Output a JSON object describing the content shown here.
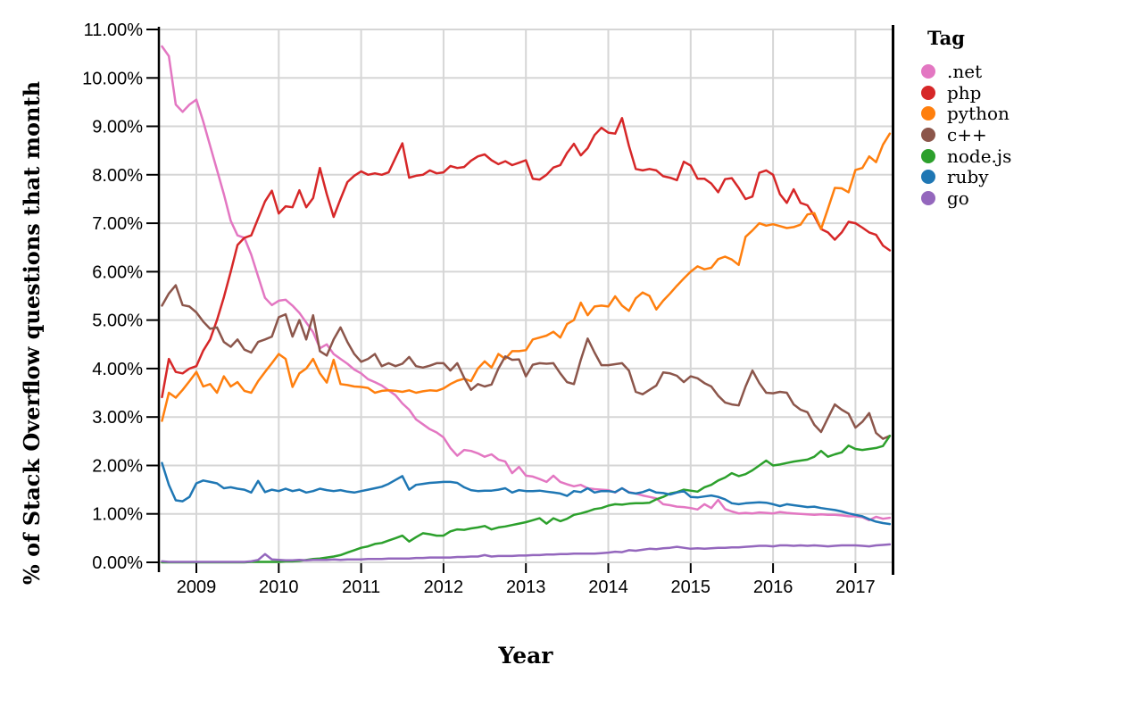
{
  "chart_data": {
    "type": "line",
    "title": "",
    "xlabel": "Year",
    "ylabel": "% of Stack Overflow questions that month",
    "legend_title": "Tag",
    "legend_position": "right",
    "grid": true,
    "x_unit": "month",
    "x_start": "2008-08",
    "x_end": "2017-06",
    "x_ticks": [
      2009,
      2010,
      2011,
      2012,
      2013,
      2014,
      2015,
      2016,
      2017
    ],
    "x_tick_labels": [
      "2009",
      "2010",
      "2011",
      "2012",
      "2013",
      "2014",
      "2015",
      "2016",
      "2017"
    ],
    "y_tick_values": [
      0,
      1,
      2,
      3,
      4,
      5,
      6,
      7,
      8,
      9,
      10,
      11
    ],
    "y_tick_labels": [
      "0.00%",
      "1.00%",
      "2.00%",
      "3.00%",
      "4.00%",
      "5.00%",
      "6.00%",
      "7.00%",
      "8.00%",
      "9.00%",
      "10.00%",
      "11.00%"
    ],
    "ylim": [
      0,
      11
    ],
    "xlim_years": [
      2008.545,
      2017.45
    ],
    "axis_color": "#000000",
    "grid_color": "#d6d6d6",
    "series": [
      {
        "name": ".net",
        "color": "#e377c2",
        "values": [
          10.65,
          10.45,
          9.45,
          9.3,
          9.45,
          9.55,
          9.1,
          8.6,
          8.1,
          7.6,
          7.05,
          6.75,
          6.7,
          6.35,
          5.9,
          5.46,
          5.31,
          5.4,
          5.42,
          5.3,
          5.15,
          4.95,
          4.75,
          4.42,
          4.5,
          4.3,
          4.2,
          4.1,
          3.98,
          3.9,
          3.78,
          3.72,
          3.65,
          3.55,
          3.45,
          3.28,
          3.15,
          2.95,
          2.85,
          2.75,
          2.68,
          2.58,
          2.36,
          2.2,
          2.32,
          2.3,
          2.25,
          2.18,
          2.23,
          2.12,
          2.08,
          1.84,
          1.97,
          1.79,
          1.77,
          1.72,
          1.66,
          1.79,
          1.66,
          1.61,
          1.57,
          1.6,
          1.53,
          1.51,
          1.5,
          1.49,
          1.44,
          1.53,
          1.45,
          1.42,
          1.38,
          1.35,
          1.32,
          1.2,
          1.18,
          1.15,
          1.14,
          1.12,
          1.09,
          1.2,
          1.12,
          1.29,
          1.1,
          1.05,
          1.01,
          1.02,
          1.01,
          1.03,
          1.02,
          1.01,
          1.04,
          1.02,
          1.01,
          1.0,
          0.99,
          0.98,
          0.99,
          0.98,
          0.98,
          0.97,
          0.95,
          0.95,
          0.93,
          0.87,
          0.94,
          0.9,
          0.92
        ]
      },
      {
        "name": "php",
        "color": "#d62728",
        "values": [
          3.41,
          4.2,
          3.93,
          3.9,
          4.0,
          4.05,
          4.37,
          4.6,
          5.0,
          5.47,
          6.0,
          6.55,
          6.7,
          6.75,
          7.1,
          7.45,
          7.67,
          7.2,
          7.35,
          7.33,
          7.68,
          7.33,
          7.52,
          8.14,
          7.6,
          7.13,
          7.5,
          7.85,
          7.98,
          8.07,
          8.0,
          8.03,
          8.0,
          8.05,
          8.35,
          8.65,
          7.94,
          7.98,
          8.0,
          8.09,
          8.03,
          8.05,
          8.18,
          8.14,
          8.16,
          8.29,
          8.38,
          8.42,
          8.3,
          8.22,
          8.28,
          8.2,
          8.25,
          8.3,
          7.92,
          7.9,
          8.0,
          8.15,
          8.2,
          8.45,
          8.64,
          8.4,
          8.55,
          8.82,
          8.97,
          8.87,
          8.85,
          9.17,
          8.6,
          8.12,
          8.09,
          8.12,
          8.09,
          7.97,
          7.94,
          7.89,
          8.27,
          8.19,
          7.92,
          7.92,
          7.82,
          7.64,
          7.91,
          7.93,
          7.73,
          7.5,
          7.55,
          8.04,
          8.09,
          8.0,
          7.6,
          7.42,
          7.7,
          7.42,
          7.37,
          7.15,
          6.88,
          6.81,
          6.66,
          6.81,
          7.03,
          7.0,
          6.91,
          6.81,
          6.76,
          6.54,
          6.44
        ]
      },
      {
        "name": "python",
        "color": "#ff7f0e",
        "values": [
          2.92,
          3.5,
          3.4,
          3.56,
          3.74,
          3.93,
          3.63,
          3.68,
          3.5,
          3.84,
          3.63,
          3.72,
          3.54,
          3.5,
          3.74,
          3.93,
          4.11,
          4.3,
          4.2,
          3.62,
          3.9,
          4.0,
          4.2,
          3.9,
          3.71,
          4.18,
          3.68,
          3.66,
          3.63,
          3.62,
          3.6,
          3.5,
          3.54,
          3.55,
          3.54,
          3.52,
          3.55,
          3.5,
          3.53,
          3.55,
          3.54,
          3.59,
          3.68,
          3.75,
          3.79,
          3.74,
          4.0,
          4.15,
          4.02,
          4.3,
          4.2,
          4.36,
          4.36,
          4.38,
          4.6,
          4.64,
          4.68,
          4.76,
          4.64,
          4.92,
          5.0,
          5.36,
          5.1,
          5.28,
          5.3,
          5.28,
          5.49,
          5.3,
          5.19,
          5.45,
          5.57,
          5.5,
          5.22,
          5.4,
          5.55,
          5.71,
          5.86,
          6.0,
          6.11,
          6.05,
          6.08,
          6.26,
          6.31,
          6.25,
          6.14,
          6.72,
          6.85,
          7.0,
          6.95,
          6.98,
          6.94,
          6.9,
          6.92,
          6.97,
          7.18,
          7.21,
          6.88,
          7.3,
          7.73,
          7.72,
          7.64,
          8.1,
          8.14,
          8.38,
          8.26,
          8.62,
          8.85
        ]
      },
      {
        "name": "c++",
        "color": "#8c564b",
        "values": [
          5.3,
          5.55,
          5.72,
          5.31,
          5.28,
          5.16,
          4.97,
          4.82,
          4.85,
          4.55,
          4.45,
          4.6,
          4.39,
          4.33,
          4.55,
          4.6,
          4.66,
          5.06,
          5.12,
          4.66,
          5.0,
          4.6,
          5.1,
          4.36,
          4.27,
          4.6,
          4.85,
          4.55,
          4.3,
          4.14,
          4.2,
          4.3,
          4.05,
          4.11,
          4.05,
          4.1,
          4.24,
          4.05,
          4.02,
          4.06,
          4.11,
          4.11,
          3.96,
          4.11,
          3.81,
          3.56,
          3.68,
          3.63,
          3.67,
          4.0,
          4.25,
          4.18,
          4.19,
          3.84,
          4.08,
          4.11,
          4.1,
          4.11,
          3.9,
          3.72,
          3.68,
          4.18,
          4.62,
          4.33,
          4.07,
          4.07,
          4.09,
          4.11,
          3.96,
          3.52,
          3.47,
          3.56,
          3.65,
          3.92,
          3.9,
          3.85,
          3.72,
          3.84,
          3.8,
          3.7,
          3.63,
          3.44,
          3.3,
          3.26,
          3.24,
          3.63,
          3.96,
          3.7,
          3.5,
          3.49,
          3.52,
          3.5,
          3.26,
          3.15,
          3.1,
          2.84,
          2.69,
          2.98,
          3.26,
          3.15,
          3.07,
          2.78,
          2.9,
          3.08,
          2.67,
          2.55,
          2.61
        ]
      },
      {
        "name": "node.js",
        "color": "#2ca02c",
        "values": [
          0,
          0,
          0,
          0,
          0,
          0,
          0,
          0,
          0,
          0,
          0,
          0,
          0,
          0.01,
          0.01,
          0.01,
          0.01,
          0.01,
          0.02,
          0.02,
          0.03,
          0.05,
          0.07,
          0.08,
          0.1,
          0.12,
          0.15,
          0.2,
          0.25,
          0.3,
          0.33,
          0.38,
          0.4,
          0.45,
          0.5,
          0.55,
          0.43,
          0.52,
          0.6,
          0.58,
          0.55,
          0.55,
          0.64,
          0.68,
          0.67,
          0.7,
          0.72,
          0.75,
          0.68,
          0.72,
          0.74,
          0.77,
          0.8,
          0.83,
          0.87,
          0.91,
          0.8,
          0.91,
          0.85,
          0.9,
          0.98,
          1.01,
          1.05,
          1.1,
          1.12,
          1.17,
          1.2,
          1.19,
          1.21,
          1.22,
          1.22,
          1.23,
          1.3,
          1.35,
          1.42,
          1.45,
          1.5,
          1.48,
          1.46,
          1.55,
          1.6,
          1.69,
          1.75,
          1.84,
          1.78,
          1.82,
          1.9,
          2.0,
          2.1,
          2.0,
          2.02,
          2.05,
          2.08,
          2.1,
          2.12,
          2.18,
          2.3,
          2.18,
          2.23,
          2.27,
          2.41,
          2.34,
          2.32,
          2.34,
          2.36,
          2.4,
          2.61
        ]
      },
      {
        "name": "ruby",
        "color": "#1f77b4",
        "values": [
          2.05,
          1.6,
          1.28,
          1.26,
          1.35,
          1.63,
          1.69,
          1.66,
          1.63,
          1.53,
          1.55,
          1.52,
          1.5,
          1.44,
          1.68,
          1.45,
          1.5,
          1.47,
          1.52,
          1.47,
          1.5,
          1.44,
          1.47,
          1.52,
          1.49,
          1.47,
          1.49,
          1.46,
          1.44,
          1.47,
          1.5,
          1.53,
          1.56,
          1.62,
          1.7,
          1.78,
          1.5,
          1.6,
          1.62,
          1.64,
          1.65,
          1.66,
          1.66,
          1.64,
          1.55,
          1.49,
          1.47,
          1.48,
          1.48,
          1.5,
          1.53,
          1.44,
          1.49,
          1.47,
          1.47,
          1.48,
          1.46,
          1.44,
          1.42,
          1.37,
          1.47,
          1.45,
          1.53,
          1.44,
          1.47,
          1.47,
          1.45,
          1.53,
          1.44,
          1.42,
          1.45,
          1.5,
          1.44,
          1.43,
          1.4,
          1.44,
          1.47,
          1.35,
          1.34,
          1.36,
          1.38,
          1.35,
          1.3,
          1.22,
          1.2,
          1.22,
          1.23,
          1.24,
          1.23,
          1.2,
          1.16,
          1.2,
          1.18,
          1.16,
          1.14,
          1.15,
          1.12,
          1.1,
          1.08,
          1.05,
          1.01,
          0.98,
          0.95,
          0.89,
          0.84,
          0.81,
          0.79
        ]
      },
      {
        "name": "go",
        "color": "#9467bd",
        "values": [
          0.02,
          0.01,
          0.01,
          0.01,
          0.01,
          0.01,
          0.01,
          0.01,
          0.01,
          0.01,
          0.01,
          0.01,
          0.01,
          0.02,
          0.05,
          0.17,
          0.06,
          0.05,
          0.04,
          0.04,
          0.05,
          0.04,
          0.05,
          0.05,
          0.05,
          0.06,
          0.05,
          0.06,
          0.06,
          0.06,
          0.07,
          0.07,
          0.07,
          0.08,
          0.08,
          0.08,
          0.08,
          0.09,
          0.09,
          0.1,
          0.1,
          0.1,
          0.1,
          0.11,
          0.11,
          0.12,
          0.12,
          0.15,
          0.12,
          0.13,
          0.13,
          0.13,
          0.14,
          0.14,
          0.15,
          0.15,
          0.16,
          0.16,
          0.17,
          0.17,
          0.18,
          0.18,
          0.18,
          0.18,
          0.19,
          0.2,
          0.22,
          0.21,
          0.25,
          0.24,
          0.26,
          0.28,
          0.27,
          0.29,
          0.3,
          0.32,
          0.3,
          0.28,
          0.29,
          0.28,
          0.29,
          0.3,
          0.3,
          0.31,
          0.31,
          0.32,
          0.33,
          0.34,
          0.34,
          0.33,
          0.35,
          0.35,
          0.34,
          0.35,
          0.34,
          0.35,
          0.34,
          0.33,
          0.34,
          0.35,
          0.35,
          0.35,
          0.34,
          0.33,
          0.35,
          0.36,
          0.37
        ]
      }
    ]
  }
}
